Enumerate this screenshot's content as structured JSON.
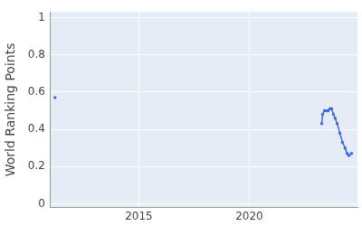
{
  "chart_data": {
    "type": "line",
    "y_label": "World Ranking Points",
    "x": [
      2011.2,
      2011.25,
      2023.28,
      2023.32,
      2023.4,
      2023.48,
      2023.57,
      2023.65,
      2023.73,
      2023.81,
      2023.89,
      2023.98,
      2024.1,
      2024.22,
      2024.34,
      2024.43,
      2024.51,
      2024.63
    ],
    "values": [
      0.57,
      null,
      0.43,
      0.48,
      0.5,
      0.5,
      0.5,
      0.51,
      0.51,
      0.48,
      0.46,
      0.43,
      0.38,
      0.33,
      0.3,
      0.27,
      0.26,
      0.27
    ],
    "color": "#4169e1",
    "xlim": [
      2011.0,
      2024.9
    ],
    "xticks": [
      2015,
      2020
    ],
    "ylim": [
      -0.02,
      1.03
    ],
    "yticks": [
      0,
      0.2,
      0.4,
      0.6,
      0.8,
      1
    ],
    "grid": true
  }
}
